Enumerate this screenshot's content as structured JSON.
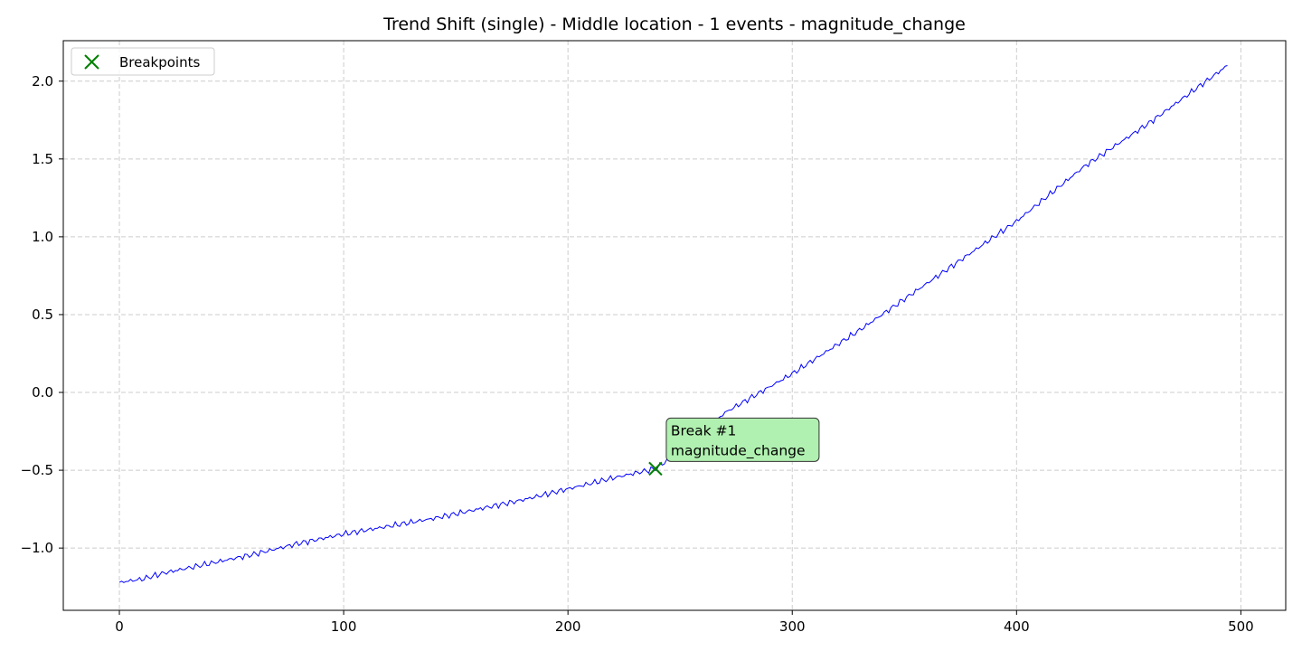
{
  "chart_data": {
    "type": "line",
    "title": "Trend Shift (single) - Middle location - 1 events - magnitude_change",
    "xlabel": "",
    "ylabel": "",
    "xlim": [
      -25,
      520
    ],
    "ylim": [
      -1.4,
      2.26
    ],
    "x_ticks": [
      0,
      100,
      200,
      300,
      400,
      500
    ],
    "y_ticks": [
      -1.0,
      -0.5,
      0.0,
      0.5,
      1.0,
      1.5,
      2.0
    ],
    "y_tick_labels": [
      "−1.0",
      "−0.5",
      "0.0",
      "0.5",
      "1.0",
      "1.5",
      "2.0"
    ],
    "grid": true,
    "legend_position": "top-left",
    "series": [
      {
        "color": "#0000ff",
        "x": [
          0,
          10,
          20,
          40,
          60,
          80,
          100,
          120,
          140,
          160,
          180,
          200,
          220,
          239,
          250,
          270,
          300,
          330,
          360,
          400,
          430,
          460,
          494
        ],
        "y": [
          -1.22,
          -1.2,
          -1.16,
          -1.1,
          -1.04,
          -0.97,
          -0.91,
          -0.86,
          -0.81,
          -0.75,
          -0.69,
          -0.62,
          -0.55,
          -0.49,
          -0.38,
          -0.13,
          0.12,
          0.4,
          0.7,
          1.1,
          1.45,
          1.74,
          2.1
        ]
      }
    ],
    "breakpoints": {
      "legend_label": "Breakpoints",
      "color": "#008000",
      "points": [
        {
          "x": 239,
          "y": -0.49,
          "annotation": [
            "Break #1",
            "magnitude_change"
          ]
        }
      ]
    },
    "annotation_style": {
      "background": "#b0f0b0"
    }
  }
}
